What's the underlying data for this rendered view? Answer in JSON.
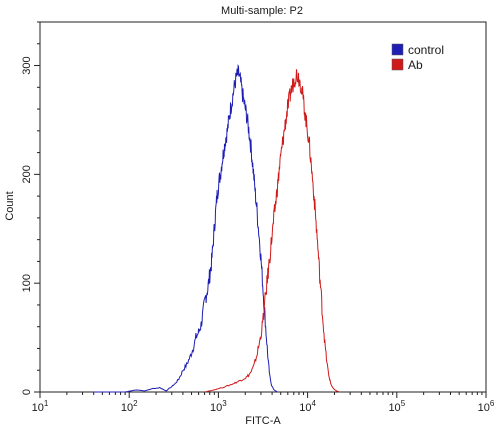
{
  "chart_data": {
    "type": "line",
    "title": "Multi-sample: P2",
    "xlabel": "FITC-A",
    "ylabel": "Count",
    "x_scale": "log",
    "xlim": [
      10,
      1000000
    ],
    "ylim": [
      0,
      340
    ],
    "grid": false,
    "legend_position": "top-right",
    "x_ticks": [
      {
        "value": 10,
        "base": "10",
        "exp": "1"
      },
      {
        "value": 100,
        "base": "10",
        "exp": "2"
      },
      {
        "value": 1000,
        "base": "10",
        "exp": "3"
      },
      {
        "value": 10000,
        "base": "10",
        "exp": "4"
      },
      {
        "value": 100000,
        "base": "10",
        "exp": "5"
      },
      {
        "value": 1000000,
        "base": "10",
        "exp": "6"
      }
    ],
    "y_ticks": [
      0,
      100,
      200,
      300
    ],
    "series": [
      {
        "name": "control",
        "color": "#1e1eb4",
        "points": [
          [
            40,
            0
          ],
          [
            90,
            0
          ],
          [
            120,
            2
          ],
          [
            150,
            1
          ],
          [
            180,
            3
          ],
          [
            220,
            4
          ],
          [
            260,
            1
          ],
          [
            300,
            5
          ],
          [
            330,
            8
          ],
          [
            360,
            12
          ],
          [
            400,
            20
          ],
          [
            440,
            25
          ],
          [
            480,
            32
          ],
          [
            520,
            40
          ],
          [
            560,
            50
          ],
          [
            600,
            55
          ],
          [
            640,
            62
          ],
          [
            680,
            75
          ],
          [
            720,
            88
          ],
          [
            760,
            95
          ],
          [
            800,
            108
          ],
          [
            840,
            120
          ],
          [
            880,
            140
          ],
          [
            920,
            160
          ],
          [
            960,
            178
          ],
          [
            1000,
            190
          ],
          [
            1050,
            200
          ],
          [
            1100,
            212
          ],
          [
            1150,
            222
          ],
          [
            1200,
            232
          ],
          [
            1260,
            240
          ],
          [
            1320,
            252
          ],
          [
            1380,
            262
          ],
          [
            1450,
            272
          ],
          [
            1520,
            282
          ],
          [
            1600,
            290
          ],
          [
            1680,
            293
          ],
          [
            1760,
            286
          ],
          [
            1850,
            275
          ],
          [
            1940,
            266
          ],
          [
            2030,
            258
          ],
          [
            2130,
            248
          ],
          [
            2230,
            236
          ],
          [
            2340,
            222
          ],
          [
            2450,
            205
          ],
          [
            2570,
            186
          ],
          [
            2700,
            168
          ],
          [
            2830,
            148
          ],
          [
            2970,
            128
          ],
          [
            3110,
            104
          ],
          [
            3260,
            80
          ],
          [
            3420,
            55
          ],
          [
            3590,
            32
          ],
          [
            3760,
            15
          ],
          [
            3950,
            6
          ],
          [
            4200,
            2
          ],
          [
            4600,
            0
          ]
        ]
      },
      {
        "name": "Ab",
        "color": "#d01a1a",
        "points": [
          [
            700,
            0
          ],
          [
            900,
            2
          ],
          [
            1100,
            4
          ],
          [
            1300,
            6
          ],
          [
            1500,
            8
          ],
          [
            1700,
            10
          ],
          [
            1900,
            12
          ],
          [
            2100,
            14
          ],
          [
            2300,
            18
          ],
          [
            2500,
            24
          ],
          [
            2700,
            34
          ],
          [
            2900,
            46
          ],
          [
            3100,
            60
          ],
          [
            3300,
            80
          ],
          [
            3500,
            100
          ],
          [
            3700,
            118
          ],
          [
            3900,
            136
          ],
          [
            4100,
            152
          ],
          [
            4300,
            168
          ],
          [
            4500,
            182
          ],
          [
            4700,
            196
          ],
          [
            4900,
            210
          ],
          [
            5150,
            224
          ],
          [
            5400,
            236
          ],
          [
            5650,
            248
          ],
          [
            5900,
            258
          ],
          [
            6200,
            268
          ],
          [
            6500,
            276
          ],
          [
            6800,
            282
          ],
          [
            7150,
            288
          ],
          [
            7500,
            292
          ],
          [
            7900,
            290
          ],
          [
            8300,
            284
          ],
          [
            8700,
            276
          ],
          [
            9100,
            264
          ],
          [
            9500,
            252
          ],
          [
            10000,
            240
          ],
          [
            10500,
            226
          ],
          [
            11000,
            208
          ],
          [
            11600,
            188
          ],
          [
            12200,
            165
          ],
          [
            12800,
            142
          ],
          [
            13400,
            118
          ],
          [
            14100,
            92
          ],
          [
            14800,
            68
          ],
          [
            15600,
            45
          ],
          [
            16400,
            28
          ],
          [
            17300,
            15
          ],
          [
            18300,
            7
          ],
          [
            19500,
            3
          ],
          [
            21000,
            1
          ],
          [
            23000,
            0
          ]
        ]
      }
    ]
  }
}
